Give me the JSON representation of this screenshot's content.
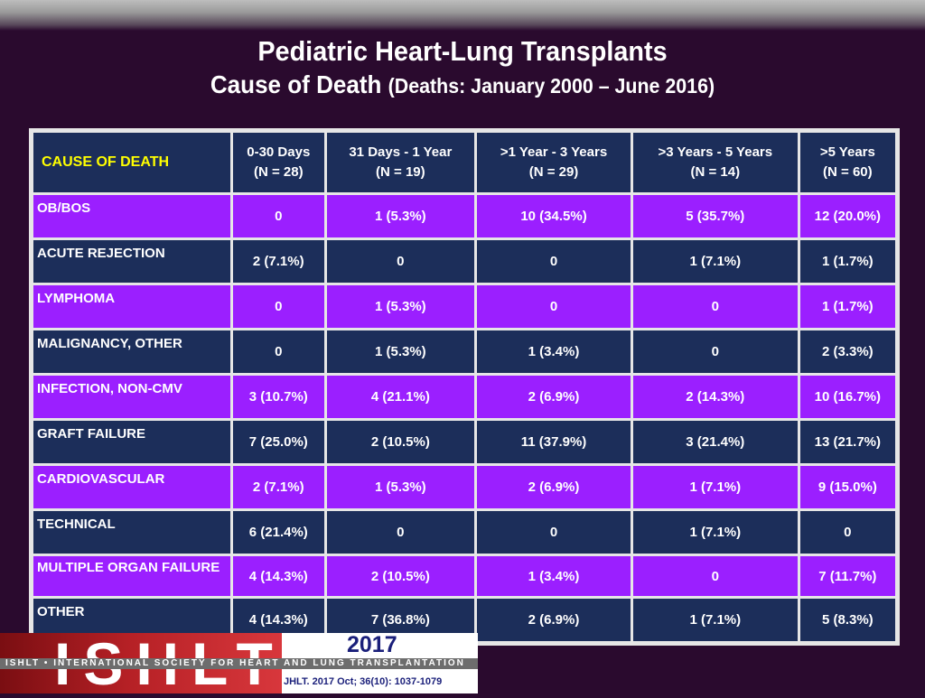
{
  "title": {
    "line1": "Pediatric Heart-Lung Transplants",
    "line2_main": "Cause of Death",
    "line2_sub": "(Deaths: January 2000 – June 2016)"
  },
  "table": {
    "header_cause": "CAUSE OF DEATH",
    "columns": [
      {
        "label": "0-30 Days",
        "n": "(N = 28)"
      },
      {
        "label": "31 Days - 1 Year",
        "n": "(N = 19)"
      },
      {
        "label": ">1 Year - 3 Years",
        "n": "(N = 29)"
      },
      {
        "label": ">3 Years - 5 Years",
        "n": "(N = 14)"
      },
      {
        "label": ">5 Years",
        "n": "(N = 60)"
      }
    ],
    "rows": [
      {
        "cause": "OB/BOS",
        "values": [
          "0",
          "1 (5.3%)",
          "10 (34.5%)",
          "5 (35.7%)",
          "12 (20.0%)"
        ]
      },
      {
        "cause": "ACUTE REJECTION",
        "values": [
          "2 (7.1%)",
          "0",
          "0",
          "1 (7.1%)",
          "1 (1.7%)"
        ]
      },
      {
        "cause": "LYMPHOMA",
        "values": [
          "0",
          "1 (5.3%)",
          "0",
          "0",
          "1 (1.7%)"
        ]
      },
      {
        "cause": "MALIGNANCY, OTHER",
        "values": [
          "0",
          "1 (5.3%)",
          "1 (3.4%)",
          "0",
          "2 (3.3%)"
        ]
      },
      {
        "cause": "INFECTION, NON-CMV",
        "values": [
          "3 (10.7%)",
          "4 (21.1%)",
          "2 (6.9%)",
          "2 (14.3%)",
          "10 (16.7%)"
        ]
      },
      {
        "cause": "GRAFT FAILURE",
        "values": [
          "7 (25.0%)",
          "2 (10.5%)",
          "11 (37.9%)",
          "3 (21.4%)",
          "13 (21.7%)"
        ]
      },
      {
        "cause": "CARDIOVASCULAR",
        "values": [
          "2 (7.1%)",
          "1 (5.3%)",
          "2 (6.9%)",
          "1 (7.1%)",
          "9 (15.0%)"
        ]
      },
      {
        "cause": "TECHNICAL",
        "values": [
          "6 (21.4%)",
          "0",
          "0",
          "1 (7.1%)",
          "0"
        ]
      },
      {
        "cause": "MULTIPLE ORGAN FAILURE",
        "values": [
          "4 (14.3%)",
          "2 (10.5%)",
          "1 (3.4%)",
          "0",
          "7 (11.7%)"
        ]
      },
      {
        "cause": "OTHER",
        "values": [
          "4 (14.3%)",
          "7 (36.8%)",
          "2 (6.9%)",
          "1 (7.1%)",
          "5 (8.3%)"
        ]
      }
    ]
  },
  "footer": {
    "logo_text": "ISHLT",
    "logo_strip": "ISHLT • INTERNATIONAL SOCIETY FOR HEART AND LUNG TRANSPLANTATION",
    "year": "2017",
    "citation": "JHLT. 2017 Oct; 36(10): 1037-1079"
  },
  "colors": {
    "background": "#2a0a2e",
    "purple_row": "#9b1fff",
    "navy_row": "#1c2e5a",
    "header_cause_text": "#ffff00"
  }
}
